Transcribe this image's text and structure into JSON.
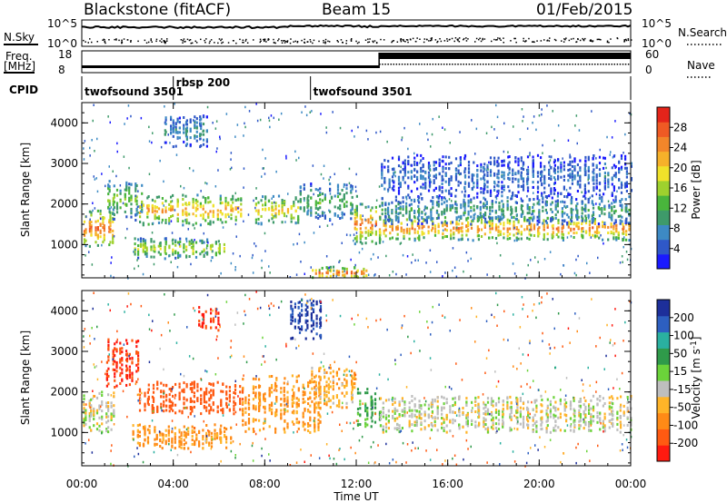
{
  "header": {
    "station": "Blackstone (fitACF)",
    "beam": "Beam 15",
    "date": "01/Feb/2015"
  },
  "aux_panels": {
    "nsky_label": "N.Sky",
    "nsearch_label": "N.Search",
    "noise_ticks": [
      "10^5",
      "10^0"
    ],
    "freq_label_line1": "Freq.",
    "freq_label_line2": "[MHz]",
    "freq_ticks": [
      "18",
      "8"
    ],
    "nave_label": "Nave",
    "nave_ticks": [
      "60",
      "0"
    ],
    "cpid_label": "CPID",
    "cpid_segments": [
      {
        "name": "twofsound 3501",
        "start_hour": 0,
        "end_hour": 4
      },
      {
        "name": "rbsp 200",
        "start_hour": 4,
        "end_hour": 10
      },
      {
        "name": "twofsound 3501",
        "start_hour": 10,
        "end_hour": 24
      }
    ]
  },
  "power_colorbar": {
    "label": "Power [dB]",
    "ticks": [
      "4",
      "8",
      "12",
      "16",
      "20",
      "24",
      "28"
    ],
    "colors": [
      "#1a1aff",
      "#2f58c8",
      "#3d8ac4",
      "#3e9a6a",
      "#49b53c",
      "#9ed12e",
      "#f0e22a",
      "#f6b12a",
      "#f2862a",
      "#ef5a24",
      "#e4241a"
    ]
  },
  "velocity_colorbar": {
    "label": "Velocity [m s",
    "label_sup": "-1",
    "label_end": "]",
    "ticks": [
      "-200",
      "-100",
      "-50",
      "-15",
      "15",
      "50",
      "100",
      "200"
    ],
    "colors": [
      "#ff1a10",
      "#ff5a12",
      "#ff8a16",
      "#ffb428",
      "#bebebe",
      "#6bd33a",
      "#2f9a4a",
      "#2ab0a0",
      "#2d5fc0",
      "#1d2f9a"
    ]
  },
  "axes": {
    "ylabel": "Slant Range [km]",
    "yticks": [
      "1000",
      "2000",
      "3000",
      "4000"
    ],
    "xlabel": "Time UT",
    "xticks": [
      "00:00",
      "04:00",
      "08:00",
      "12:00",
      "16:00",
      "20:00",
      "00:00"
    ]
  },
  "chart_data": [
    {
      "type": "heatmap",
      "title": "",
      "quantity": "Power [dB]",
      "xlabel": "Time UT",
      "ylabel": "Slant Range [km]",
      "xlim_hours": [
        0,
        24
      ],
      "ylim_km": [
        180,
        4500
      ],
      "color_range": [
        0,
        30
      ],
      "regions": [
        {
          "t_start": 0.0,
          "t_end": 1.4,
          "r_center": 1400,
          "r_width": 450,
          "peak_db": 26
        },
        {
          "t_start": 1.0,
          "t_end": 2.6,
          "r_center": 2100,
          "r_width": 500,
          "peak_db": 14
        },
        {
          "t_start": 2.5,
          "t_end": 7.0,
          "r_center": 1850,
          "r_width": 380,
          "peak_db": 22
        },
        {
          "t_start": 2.2,
          "t_end": 6.2,
          "r_center": 900,
          "r_width": 250,
          "peak_db": 17
        },
        {
          "t_start": 7.5,
          "t_end": 9.5,
          "r_center": 1850,
          "r_width": 350,
          "peak_db": 20
        },
        {
          "t_start": 9.5,
          "t_end": 12.0,
          "r_center": 2050,
          "r_width": 450,
          "peak_db": 12
        },
        {
          "t_start": 11.8,
          "t_end": 13.0,
          "r_center": 1500,
          "r_width": 500,
          "peak_db": 24
        },
        {
          "t_start": 10.0,
          "t_end": 12.5,
          "r_center": 300,
          "r_width": 150,
          "peak_db": 26
        },
        {
          "t_start": 13.0,
          "t_end": 24.0,
          "r_center": 1400,
          "r_width": 300,
          "peak_db": 24
        },
        {
          "t_start": 13.0,
          "t_end": 24.0,
          "r_center": 1850,
          "r_width": 350,
          "peak_db": 10
        },
        {
          "t_start": 13.0,
          "t_end": 24.0,
          "r_center": 2700,
          "r_width": 500,
          "peak_db": 6
        },
        {
          "t_start": 3.5,
          "t_end": 5.5,
          "r_center": 3800,
          "r_width": 400,
          "peak_db": 8
        }
      ]
    },
    {
      "type": "heatmap",
      "title": "",
      "quantity": "Velocity [m s-1]",
      "xlabel": "Time UT",
      "ylabel": "Slant Range [km]",
      "xlim_hours": [
        0,
        24
      ],
      "ylim_km": [
        180,
        4500
      ],
      "color_range": [
        -250,
        250
      ],
      "regions": [
        {
          "t_start": 0.0,
          "t_end": 1.4,
          "r_center": 1500,
          "r_width": 500,
          "velocity": 0
        },
        {
          "t_start": 1.0,
          "t_end": 2.5,
          "r_center": 2700,
          "r_width": 600,
          "velocity": -200
        },
        {
          "t_start": 2.5,
          "t_end": 7.0,
          "r_center": 1850,
          "r_width": 400,
          "velocity": -150
        },
        {
          "t_start": 2.2,
          "t_end": 6.5,
          "r_center": 900,
          "r_width": 300,
          "velocity": -60
        },
        {
          "t_start": 7.0,
          "t_end": 10.5,
          "r_center": 1700,
          "r_width": 700,
          "velocity": -60
        },
        {
          "t_start": 10.0,
          "t_end": 12.0,
          "r_center": 2100,
          "r_width": 500,
          "velocity": -40
        },
        {
          "t_start": 12.0,
          "t_end": 13.0,
          "r_center": 1600,
          "r_width": 500,
          "velocity": 60
        },
        {
          "t_start": 13.0,
          "t_end": 24.0,
          "r_center": 1450,
          "r_width": 450,
          "velocity": 0
        },
        {
          "t_start": 5.0,
          "t_end": 6.0,
          "r_center": 3800,
          "r_width": 300,
          "velocity": -200
        },
        {
          "t_start": 9.0,
          "t_end": 10.5,
          "r_center": 3800,
          "r_width": 500,
          "velocity": 200
        }
      ]
    }
  ]
}
